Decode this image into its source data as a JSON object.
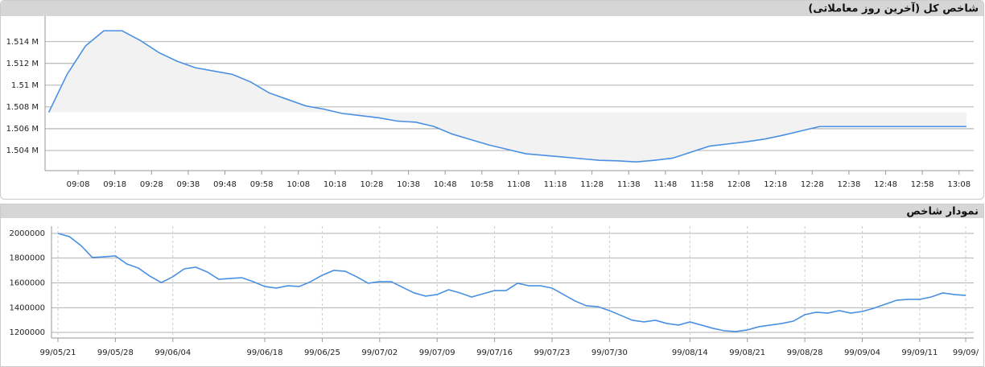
{
  "chart_data": [
    {
      "type": "area",
      "title": "شاخص کل (آخرین روز معاملاتی)",
      "color": "#4a90e2",
      "grid": true,
      "x": [
        "09:00",
        "09:05",
        "09:10",
        "09:15",
        "09:20",
        "09:25",
        "09:30",
        "09:35",
        "09:40",
        "09:45",
        "09:50",
        "09:55",
        "10:00",
        "10:05",
        "10:10",
        "10:15",
        "10:20",
        "10:25",
        "10:30",
        "10:35",
        "10:40",
        "10:45",
        "10:50",
        "10:55",
        "11:00",
        "11:05",
        "11:10",
        "11:15",
        "11:20",
        "11:25",
        "11:30",
        "11:35",
        "11:40",
        "11:45",
        "11:50",
        "11:55",
        "12:00",
        "12:05",
        "12:10",
        "12:15",
        "12:20",
        "12:25",
        "12:30",
        "12:35",
        "12:40",
        "12:45",
        "12:50",
        "12:55",
        "13:00",
        "13:05",
        "13:10"
      ],
      "values": [
        1507500,
        1511000,
        1513600,
        1515000,
        1515000,
        1514100,
        1513000,
        1512200,
        1511600,
        1511300,
        1511000,
        1510300,
        1509300,
        1508700,
        1508100,
        1507800,
        1507400,
        1507200,
        1507000,
        1506700,
        1506600,
        1506200,
        1505500,
        1505000,
        1504500,
        1504100,
        1503700,
        1503550,
        1503400,
        1503250,
        1503100,
        1503050,
        1502950,
        1503100,
        1503300,
        1503850,
        1504400,
        1504600,
        1504800,
        1505050,
        1505400,
        1505800,
        1506200,
        1506200,
        1506200,
        1506200,
        1506200,
        1506200,
        1506200,
        1506200,
        1506200
      ],
      "xlim": [
        "08:59",
        "13:12"
      ],
      "xticks": [
        "09:08",
        "09:18",
        "09:28",
        "09:38",
        "09:48",
        "09:58",
        "10:08",
        "10:18",
        "10:28",
        "10:38",
        "10:48",
        "10:58",
        "11:08",
        "11:18",
        "11:28",
        "11:38",
        "11:48",
        "11:58",
        "12:08",
        "12:18",
        "12:28",
        "12:38",
        "12:48",
        "12:58",
        "13:08"
      ],
      "ylim": [
        1502150,
        1516350
      ],
      "yticks": [
        {
          "value": 1504000,
          "label": "1.504 M"
        },
        {
          "value": 1506000,
          "label": "1.506 M"
        },
        {
          "value": 1508000,
          "label": "1.508 M"
        },
        {
          "value": 1510000,
          "label": "1.51 M"
        },
        {
          "value": 1512000,
          "label": "1.512 M"
        },
        {
          "value": 1514000,
          "label": "1.514 M"
        }
      ]
    },
    {
      "type": "line",
      "title": "نمودار شاخص",
      "color": "#4a90e2",
      "grid": true,
      "xgrid": true,
      "categories": [
        "99/05/21",
        null,
        null,
        null,
        null,
        "99/05/28",
        null,
        null,
        null,
        null,
        "99/06/04",
        null,
        null,
        null,
        null,
        null,
        null,
        null,
        "99/06/18",
        null,
        null,
        null,
        null,
        "99/06/25",
        null,
        null,
        null,
        null,
        "99/07/02",
        null,
        null,
        null,
        null,
        "99/07/09",
        null,
        null,
        null,
        null,
        "99/07/16",
        null,
        null,
        null,
        null,
        "99/07/23",
        null,
        null,
        null,
        null,
        "99/07/30",
        null,
        null,
        null,
        null,
        null,
        null,
        "99/08/14",
        null,
        null,
        null,
        null,
        "99/08/21",
        null,
        null,
        null,
        null,
        "99/08/28",
        null,
        null,
        null,
        null,
        "99/09/04",
        null,
        null,
        null,
        null,
        "99/09/11",
        null,
        null,
        null,
        "99/09/"
      ],
      "values": [
        2000000,
        1974000,
        1902000,
        1805000,
        1811000,
        1818000,
        1753000,
        1720000,
        1655000,
        1603000,
        1650000,
        1714000,
        1727000,
        1688000,
        1629000,
        1636000,
        1642000,
        1610000,
        1571000,
        1558000,
        1577000,
        1571000,
        1610000,
        1662000,
        1701000,
        1694000,
        1649000,
        1597000,
        1610000,
        1610000,
        1564000,
        1519000,
        1493000,
        1506000,
        1545000,
        1519000,
        1486000,
        1512000,
        1538000,
        1538000,
        1597000,
        1577000,
        1577000,
        1558000,
        1506000,
        1454000,
        1415000,
        1408000,
        1376000,
        1337000,
        1298000,
        1285000,
        1298000,
        1272000,
        1259000,
        1285000,
        1259000,
        1233000,
        1213000,
        1207000,
        1220000,
        1246000,
        1259000,
        1272000,
        1291000,
        1343000,
        1363000,
        1356000,
        1376000,
        1356000,
        1369000,
        1395000,
        1428000,
        1460000,
        1467000,
        1467000,
        1486000,
        1519000,
        1506000,
        1499000
      ],
      "ylim": [
        1154500,
        2058500
      ],
      "yticks": [
        1200000,
        1400000,
        1600000,
        1800000,
        2000000
      ]
    }
  ]
}
